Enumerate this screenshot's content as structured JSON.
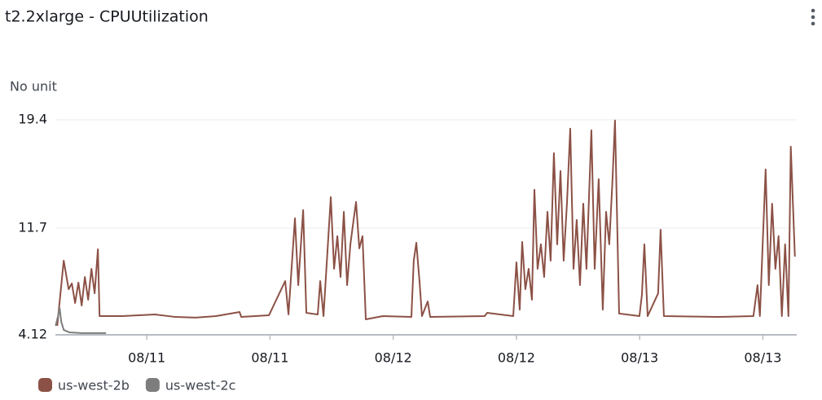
{
  "chart_data": {
    "type": "line",
    "title": "t2.2xlarge - CPUUtilization",
    "y_label": "No unit",
    "xlim": [
      -8.9,
      63.3
    ],
    "xticks": [
      {
        "value": 0,
        "label": "08/11"
      },
      {
        "value": 12,
        "label": "08/11"
      },
      {
        "value": 24,
        "label": "08/12"
      },
      {
        "value": 36,
        "label": "08/12"
      },
      {
        "value": 48,
        "label": "08/13"
      },
      {
        "value": 60,
        "label": "08/13"
      }
    ],
    "ylim": [
      4.12,
      19.4
    ],
    "yticks": [
      4.12,
      11.7,
      19.4
    ],
    "grid": true,
    "legend": "bottom-left",
    "series": [
      {
        "name": "us-west-2b",
        "color": "#8c5146",
        "x": [
          -8.72,
          -8.09,
          -7.61,
          -7.3,
          -6.98,
          -6.66,
          -6.34,
          -6.03,
          -5.71,
          -5.39,
          -5.08,
          -4.76,
          -4.6,
          -2.38,
          0.79,
          2.78,
          4.76,
          6.74,
          9.04,
          9.2,
          11.9,
          13.48,
          13.8,
          14.43,
          14.75,
          15.23,
          15.54,
          16.65,
          16.89,
          17.21,
          17.92,
          18.24,
          18.56,
          18.87,
          19.19,
          19.51,
          19.83,
          20.14,
          20.38,
          20.7,
          21.01,
          21.33,
          22.99,
          25.77,
          26.0,
          26.25,
          26.56,
          26.8,
          27.36,
          27.6,
          32.91,
          33.15,
          35.69,
          36.0,
          36.32,
          36.56,
          36.87,
          37.19,
          37.51,
          37.75,
          38.06,
          38.38,
          38.7,
          39.02,
          39.33,
          39.65,
          39.97,
          40.29,
          40.6,
          40.92,
          41.24,
          41.56,
          41.87,
          42.19,
          42.51,
          42.82,
          43.3,
          43.62,
          44.01,
          44.41,
          44.73,
          45.04,
          45.36,
          45.6,
          46.0,
          47.98,
          48.22,
          48.46,
          48.78,
          49.8,
          50.04,
          50.36,
          55.51,
          59.08,
          59.48,
          59.71,
          59.95,
          60.27,
          60.58,
          60.9,
          61.22,
          61.53,
          61.85,
          62.17,
          62.49,
          62.72,
          63.12
        ],
        "values": [
          4.76,
          9.39,
          7.36,
          7.77,
          6.38,
          7.83,
          6.2,
          8.23,
          6.61,
          8.81,
          7.07,
          10.2,
          5.45,
          5.45,
          5.57,
          5.39,
          5.34,
          5.45,
          5.74,
          5.39,
          5.51,
          7.94,
          5.57,
          12.4,
          7.65,
          12.98,
          5.68,
          5.57,
          7.94,
          5.45,
          13.9,
          8.81,
          11.13,
          8.23,
          12.86,
          7.65,
          10.55,
          12.28,
          13.56,
          10.26,
          11.13,
          5.22,
          5.45,
          5.39,
          9.39,
          10.66,
          7.94,
          5.45,
          6.49,
          5.39,
          5.45,
          5.68,
          5.45,
          9.27,
          5.91,
          10.72,
          7.36,
          8.81,
          6.61,
          14.43,
          8.81,
          10.55,
          8.23,
          12.86,
          9.39,
          17.03,
          10.55,
          15.76,
          9.39,
          13.44,
          18.77,
          8.81,
          12.28,
          7.65,
          13.44,
          8.81,
          18.65,
          8.81,
          15.18,
          5.91,
          12.86,
          10.55,
          15.18,
          19.35,
          5.63,
          5.45,
          6.96,
          10.55,
          5.45,
          7.07,
          11.59,
          5.45,
          5.39,
          5.45,
          7.65,
          5.45,
          9.97,
          15.87,
          7.65,
          13.44,
          8.81,
          11.13,
          5.45,
          10.55,
          5.45,
          17.49,
          9.68
        ]
      },
      {
        "name": "us-west-2c",
        "color": "#7d7d7d",
        "x": [
          -8.88,
          -8.64,
          -8.49,
          -8.33,
          -8.09,
          -7.53,
          -6.34,
          -3.97
        ],
        "values": [
          4.76,
          5.45,
          6.03,
          5.05,
          4.47,
          4.29,
          4.24,
          4.24
        ]
      }
    ]
  }
}
